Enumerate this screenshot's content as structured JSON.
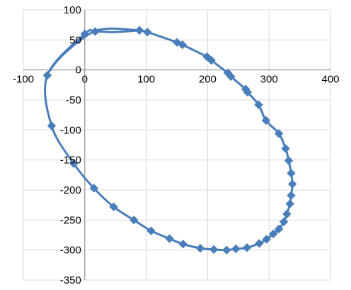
{
  "chart_data": {
    "type": "scatter",
    "title": "",
    "xlabel": "",
    "ylabel": "",
    "xlim": [
      -100,
      400
    ],
    "ylim": [
      -350,
      100
    ],
    "grid": true,
    "legend": "none",
    "x_ticks": [
      -100,
      0,
      100,
      200,
      300,
      400
    ],
    "y_ticks": [
      100,
      50,
      0,
      -50,
      -100,
      -150,
      -200,
      -250,
      -300,
      -350
    ],
    "x_tick_labels": [
      "-100",
      "0",
      "100",
      "200",
      "300",
      "400"
    ],
    "y_tick_labels": [
      "100",
      "50",
      "0",
      "-50",
      "-100",
      "-150",
      "-200",
      "-250",
      "-300",
      "-350"
    ],
    "series_color": "#4a7ebb",
    "marker": "diamond",
    "series": [
      {
        "points": [
          [
            89,
            66
          ],
          [
            102,
            63
          ],
          [
            150,
            46
          ],
          [
            159,
            42
          ],
          [
            199,
            22
          ],
          [
            206,
            16
          ],
          [
            233,
            -5
          ],
          [
            238,
            -11
          ],
          [
            262,
            -32
          ],
          [
            265,
            -37
          ],
          [
            283,
            -58
          ],
          [
            295,
            -84
          ],
          [
            316,
            -106
          ],
          [
            327,
            -131
          ],
          [
            332,
            -151
          ],
          [
            336,
            -172
          ],
          [
            338,
            -190
          ],
          [
            336,
            -209
          ],
          [
            334,
            -223
          ],
          [
            329,
            -240
          ],
          [
            324,
            -253
          ],
          [
            316,
            -265
          ],
          [
            307,
            -273
          ],
          [
            296,
            -282
          ],
          [
            284,
            -289
          ],
          [
            264,
            -296
          ],
          [
            246,
            -298
          ],
          [
            231,
            -300
          ],
          [
            210,
            -299
          ],
          [
            188,
            -297
          ],
          [
            160,
            -290
          ],
          [
            138,
            -281
          ],
          [
            108,
            -268
          ],
          [
            80,
            -250
          ],
          [
            47,
            -228
          ],
          [
            15,
            -197
          ],
          [
            -18,
            -156
          ],
          [
            -54,
            -93
          ],
          [
            -61,
            -9
          ],
          [
            0,
            60
          ],
          [
            17,
            64
          ]
        ],
        "curve": [
          [
            -63,
            -10
          ],
          [
            -45,
            15
          ],
          [
            -25,
            35
          ],
          [
            0,
            55
          ],
          [
            20,
            66
          ],
          [
            45,
            69
          ],
          [
            75,
            67
          ],
          [
            89,
            66
          ],
          [
            102,
            63
          ],
          [
            150,
            46
          ],
          [
            159,
            42
          ],
          [
            199,
            22
          ],
          [
            206,
            16
          ],
          [
            233,
            -5
          ],
          [
            238,
            -11
          ],
          [
            262,
            -32
          ],
          [
            265,
            -37
          ],
          [
            283,
            -58
          ],
          [
            295,
            -84
          ],
          [
            316,
            -106
          ],
          [
            327,
            -131
          ],
          [
            332,
            -151
          ],
          [
            336,
            -172
          ],
          [
            338,
            -190
          ],
          [
            336,
            -209
          ],
          [
            334,
            -223
          ],
          [
            329,
            -240
          ],
          [
            324,
            -253
          ],
          [
            316,
            -265
          ],
          [
            307,
            -273
          ],
          [
            296,
            -282
          ],
          [
            284,
            -289
          ],
          [
            264,
            -296
          ],
          [
            246,
            -298
          ],
          [
            231,
            -300
          ],
          [
            210,
            -299
          ],
          [
            188,
            -297
          ],
          [
            160,
            -290
          ],
          [
            138,
            -281
          ],
          [
            108,
            -268
          ],
          [
            80,
            -250
          ],
          [
            47,
            -228
          ],
          [
            15,
            -197
          ],
          [
            -18,
            -156
          ],
          [
            -54,
            -93
          ],
          [
            -61,
            -9
          ],
          [
            0,
            60
          ],
          [
            17,
            64
          ],
          [
            50,
            63
          ],
          [
            89,
            66
          ]
        ]
      }
    ]
  }
}
